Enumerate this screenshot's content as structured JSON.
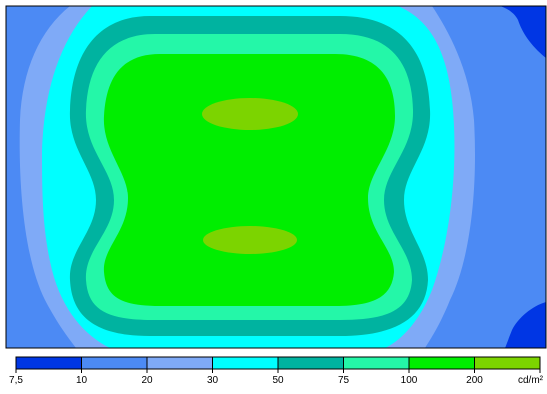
{
  "chart_data": {
    "type": "heatmap",
    "title": "",
    "unit": "cd/m²",
    "levels": [
      {
        "min": 7.5,
        "max": 10,
        "color": "#0036e4"
      },
      {
        "min": 10,
        "max": 20,
        "color": "#4c8af4"
      },
      {
        "min": 20,
        "max": 30,
        "color": "#7faaf7"
      },
      {
        "min": 30,
        "max": 50,
        "color": "#00ffff"
      },
      {
        "min": 50,
        "max": 75,
        "color": "#00b3a0"
      },
      {
        "min": 75,
        "max": 100,
        "color": "#24f7a8"
      },
      {
        "min": 100,
        "max": 200,
        "color": "#00ee00"
      },
      {
        "min": 200,
        "max": null,
        "color": "#7cd400"
      }
    ],
    "tick_labels": [
      "7,5",
      "10",
      "20",
      "30",
      "50",
      "75",
      "100",
      "200",
      "cd/m²"
    ],
    "maxima_count": 2
  }
}
